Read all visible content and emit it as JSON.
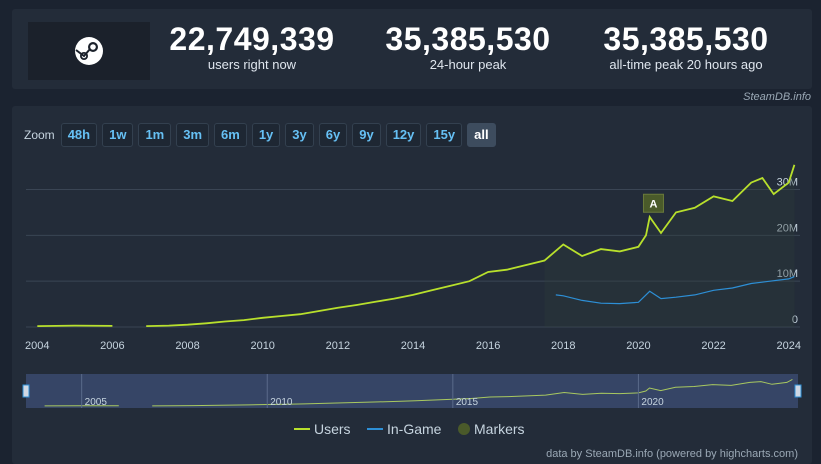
{
  "stats": [
    {
      "value": "22,749,339",
      "label": "users right now"
    },
    {
      "value": "35,385,530",
      "label": "24-hour peak"
    },
    {
      "value": "35,385,530",
      "label": "all-time peak 20 hours ago"
    }
  ],
  "source_credit": "SteamDB.info",
  "zoom": {
    "label": "Zoom",
    "buttons": [
      "48h",
      "1w",
      "1m",
      "3m",
      "6m",
      "1y",
      "3y",
      "6y",
      "9y",
      "12y",
      "15y",
      "all"
    ],
    "selected": "all"
  },
  "footer_credit": "data by SteamDB.info (powered by highcharts.com)",
  "colors": {
    "users": "#b8e02c",
    "in_game": "#2d8fd6",
    "markers": "#4a5a2a",
    "accent": "#66c0f4"
  },
  "chart_data": {
    "type": "line",
    "y_axis": {
      "ticks": [
        "0",
        "10M",
        "20M",
        "30M"
      ],
      "range": [
        0,
        36000000
      ],
      "position": "right"
    },
    "x_axis": {
      "ticks": [
        "2004",
        "2006",
        "2008",
        "2010",
        "2012",
        "2014",
        "2016",
        "2018",
        "2020",
        "2022",
        "2024"
      ],
      "range": [
        2003.7,
        2024.3
      ]
    },
    "grid": true,
    "legend_position": "bottom",
    "series": [
      {
        "name": "Users",
        "x": [
          2004.0,
          2005.0,
          2006.0,
          null,
          2006.9,
          2007.5,
          2008.0,
          2008.5,
          2009.0,
          2009.5,
          2010.0,
          2010.5,
          2011.0,
          2011.5,
          2012.0,
          2012.5,
          2013.0,
          2013.5,
          2014.0,
          2014.5,
          2015.0,
          2015.5,
          2016.0,
          2016.5,
          2017.0,
          2017.5,
          2018.0,
          2018.5,
          2019.0,
          2019.5,
          2020.0,
          2020.2,
          2020.3,
          2020.6,
          2021.0,
          2021.5,
          2022.0,
          2022.5,
          2023.0,
          2023.3,
          2023.6,
          2024.0,
          2024.15
        ],
        "y": [
          200000,
          300000,
          250000,
          null,
          200000,
          300000,
          500000,
          800000,
          1200000,
          1500000,
          2000000,
          2400000,
          2800000,
          3500000,
          4200000,
          4800000,
          5500000,
          6200000,
          7000000,
          8000000,
          9000000,
          10000000,
          12000000,
          12500000,
          13500000,
          14500000,
          18000000,
          15500000,
          17000000,
          16500000,
          17500000,
          20000000,
          24000000,
          20500000,
          25000000,
          26000000,
          28500000,
          27500000,
          31500000,
          32500000,
          29000000,
          31500000,
          35400000
        ]
      },
      {
        "name": "In-Game",
        "x": [
          2017.8,
          2018.0,
          2018.5,
          2019.0,
          2019.5,
          2020.0,
          2020.3,
          2020.6,
          2021.0,
          2021.5,
          2022.0,
          2022.5,
          2023.0,
          2023.5,
          2024.0,
          2024.15
        ],
        "y": [
          7000000,
          6800000,
          5800000,
          5200000,
          5100000,
          5400000,
          7800000,
          6200000,
          6500000,
          7000000,
          8000000,
          8500000,
          9500000,
          10000000,
          10500000,
          11000000
        ]
      }
    ],
    "markers": [
      {
        "label": "A",
        "x": 2020.4,
        "y": 27000000
      }
    ],
    "navigator": {
      "ticks": [
        "2005",
        "2010",
        "2015",
        "2020"
      ]
    }
  }
}
